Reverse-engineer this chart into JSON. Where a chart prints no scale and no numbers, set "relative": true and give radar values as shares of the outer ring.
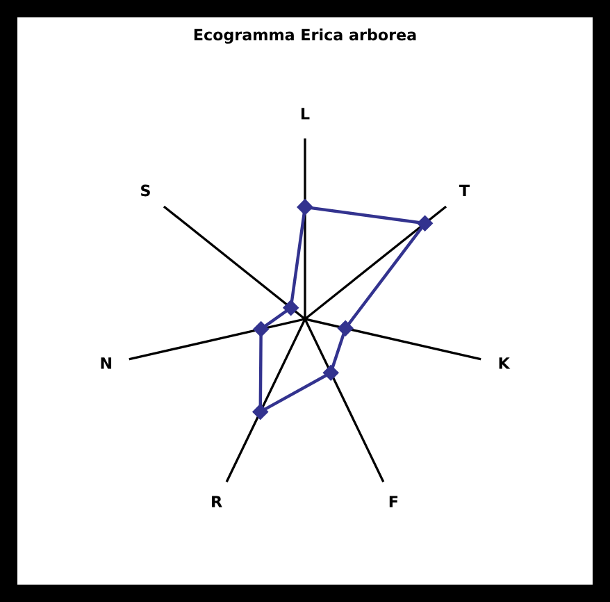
{
  "chart_data": {
    "type": "radar",
    "title": "Ecogramma Erica arborea",
    "relative": true,
    "categories": [
      "L",
      "T",
      "K",
      "F",
      "R",
      "N",
      "S"
    ],
    "series": [
      {
        "color": "#33338f",
        "values": [
          0.62,
          0.85,
          0.23,
          0.33,
          0.57,
          0.25,
          0.1
        ]
      }
    ],
    "marker": "diamond"
  }
}
